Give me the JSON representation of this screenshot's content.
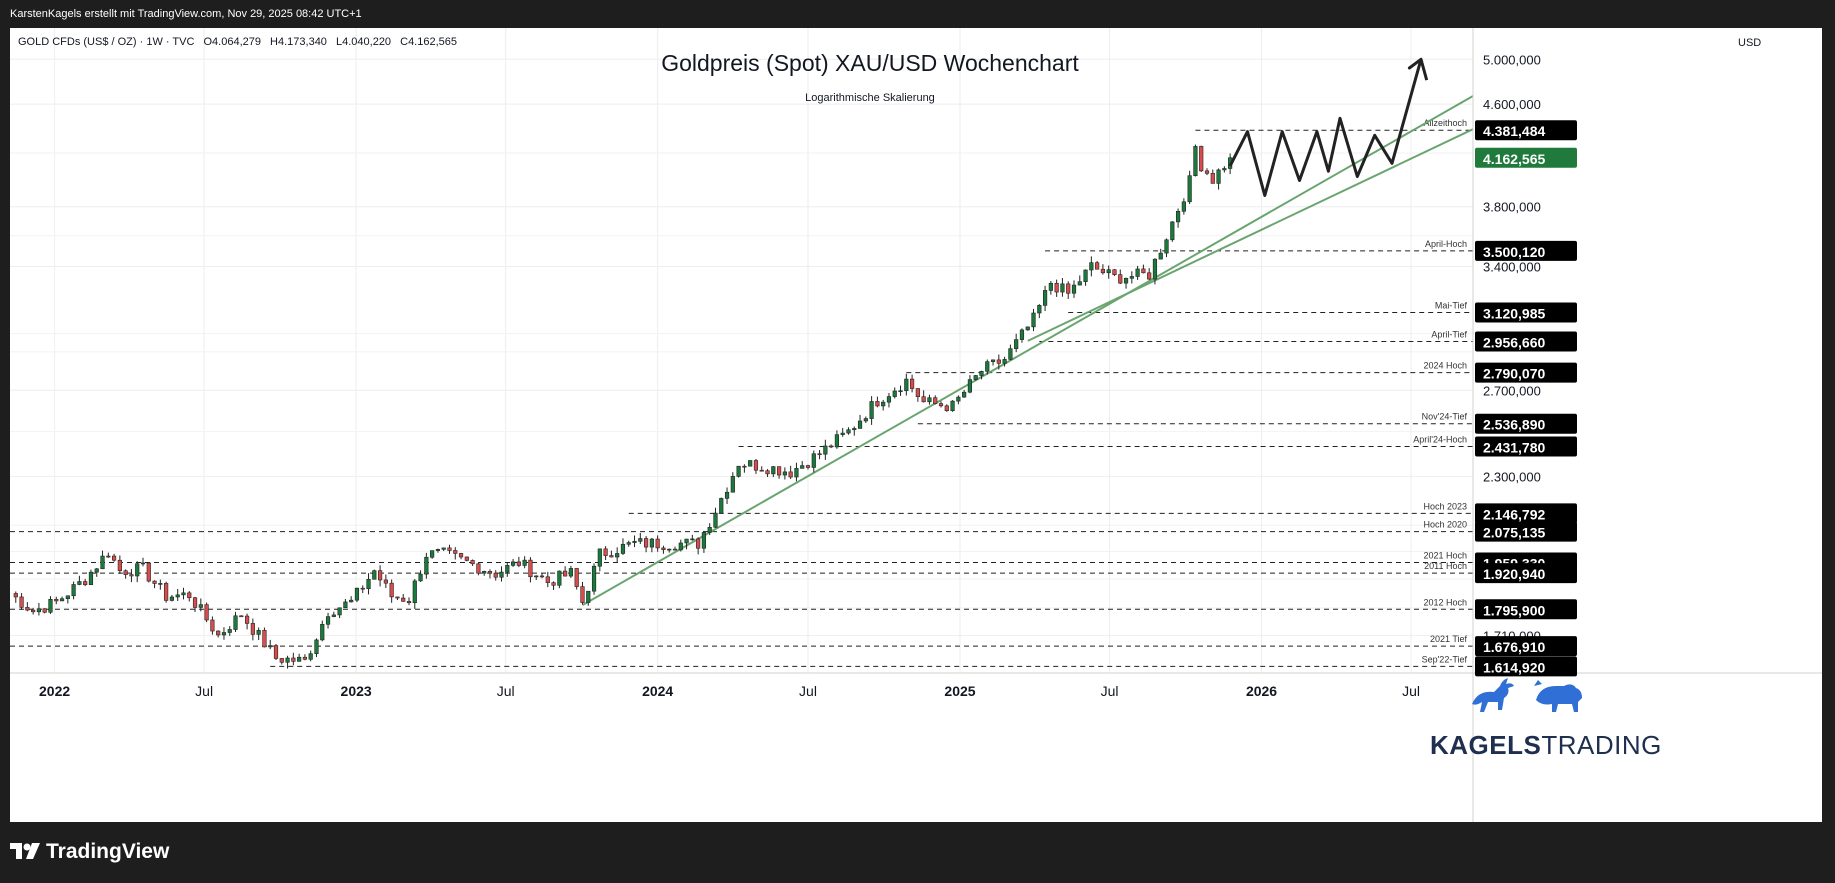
{
  "topbar": {
    "text": "KarstenKagels erstellt mit TradingView.com, Nov 29, 2025 08:42 UTC+1"
  },
  "legend": {
    "symbol": "GOLD CFDs (US$ / OZ) · 1W · TVC",
    "open": "O4.064,279",
    "high": "H4.173,340",
    "low": "L4.040,220",
    "close": "C4.162,565"
  },
  "title": "Goldpreis (Spot) XAU/USD Wochenchart",
  "subtitle": "Logarithmische Skalierung",
  "currency": "USD",
  "brand": {
    "bold": "KAGELS",
    "light": "TRADING"
  },
  "footer": {
    "logo_text": "TradingView"
  },
  "colors": {
    "up": "#1a7a3c",
    "down": "#d84c4c",
    "trendline": "#6aa56f",
    "price_tag": "#1f7a3c",
    "level_tag": "#000000"
  },
  "chart_data": {
    "type": "candlestick",
    "y_scale": "log",
    "ylim": [
      1595,
      5300
    ],
    "xlim": [
      "2021-11-08",
      "2026-09-14"
    ],
    "x_ticks": [
      {
        "date": "2022-01-01",
        "label": "2022",
        "bold": true
      },
      {
        "date": "2022-07-01",
        "label": "Jul",
        "bold": false
      },
      {
        "date": "2023-01-01",
        "label": "2023",
        "bold": true
      },
      {
        "date": "2023-07-01",
        "label": "Jul",
        "bold": false
      },
      {
        "date": "2024-01-01",
        "label": "2024",
        "bold": true
      },
      {
        "date": "2024-07-01",
        "label": "Jul",
        "bold": false
      },
      {
        "date": "2025-01-01",
        "label": "2025",
        "bold": true
      },
      {
        "date": "2025-07-01",
        "label": "Jul",
        "bold": false
      },
      {
        "date": "2026-01-01",
        "label": "2026",
        "bold": true
      },
      {
        "date": "2026-07-01",
        "label": "Jul",
        "bold": false
      }
    ],
    "y_ticks": [
      {
        "value": 5000,
        "label": "5.000,000"
      },
      {
        "value": 4600,
        "label": "4.600,000"
      },
      {
        "value": 3800,
        "label": "3.800,000"
      },
      {
        "value": 3400,
        "label": "3.400,000"
      },
      {
        "value": 2700,
        "label": "2.700,000"
      },
      {
        "value": 2300,
        "label": "2.300,000"
      },
      {
        "value": 1710,
        "label": "1.710,000"
      }
    ],
    "levels": [
      {
        "value": 4381.484,
        "label": "Allzeithoch",
        "tag": "4.381,484",
        "start": "2025-10-13"
      },
      {
        "value": 3500.12,
        "label": "April-Hoch",
        "tag": "3.500,120",
        "start": "2025-04-14"
      },
      {
        "value": 3120.985,
        "label": "Mai-Tief",
        "tag": "3.120,985",
        "start": "2025-05-12"
      },
      {
        "value": 2956.66,
        "label": "April-Tief",
        "tag": "2.956,660",
        "start": "2025-04-07"
      },
      {
        "value": 2790.07,
        "label": "2024 Hoch",
        "tag": "2.790,070",
        "start": "2024-10-28"
      },
      {
        "value": 2536.89,
        "label": "Nov'24-Tief",
        "tag": "2.536,890",
        "start": "2024-11-11"
      },
      {
        "value": 2431.78,
        "label": "April'24-Hoch",
        "tag": "2.431,780",
        "start": "2024-04-08"
      },
      {
        "value": 2146.792,
        "label": "Hoch 2023",
        "tag": "2.146,792",
        "start": "2023-11-27"
      },
      {
        "value": 2075.135,
        "label": "Hoch 2020",
        "tag": "2.075,135",
        "start": "2021-11-08"
      },
      {
        "value": 1959.33,
        "label": "2021 Hoch",
        "tag": "1.959,330",
        "start": "2021-11-08"
      },
      {
        "value": 1920.94,
        "label": "2011 Hoch",
        "tag": "1.920,940",
        "start": "2021-11-08"
      },
      {
        "value": 1795.9,
        "label": "2012 Hoch",
        "tag": "1.795,900",
        "start": "2021-11-08"
      },
      {
        "value": 1676.91,
        "label": "2021 Tief",
        "tag": "1.676,910",
        "start": "2021-11-08"
      },
      {
        "value": 1614.92,
        "label": "Sep'22-Tief",
        "tag": "1.614,920",
        "start": "2022-09-19"
      }
    ],
    "last_price": {
      "value": 4162.565,
      "tag": "4.162,565"
    },
    "trendlines": [
      {
        "from": {
          "date": "2023-10-02",
          "value": 1810
        },
        "to": {
          "date": "2026-09-14",
          "value": 4670
        }
      },
      {
        "from": {
          "date": "2025-03-24",
          "value": 2960
        },
        "to": {
          "date": "2026-09-14",
          "value": 4390
        }
      }
    ],
    "projection": [
      {
        "date": "2025-11-24",
        "value": 4100
      },
      {
        "date": "2025-12-15",
        "value": 4370
      },
      {
        "date": "2026-01-05",
        "value": 3880
      },
      {
        "date": "2026-01-26",
        "value": 4370
      },
      {
        "date": "2026-02-16",
        "value": 3990
      },
      {
        "date": "2026-03-09",
        "value": 4370
      },
      {
        "date": "2026-03-23",
        "value": 4060
      },
      {
        "date": "2026-04-06",
        "value": 4480
      },
      {
        "date": "2026-04-27",
        "value": 4020
      },
      {
        "date": "2026-05-18",
        "value": 4340
      },
      {
        "date": "2026-06-08",
        "value": 4120
      },
      {
        "date": "2026-07-13",
        "value": 5000
      },
      {
        "date": "2026-06-29",
        "value": 4920
      },
      {
        "date": "2026-07-13",
        "value": 5000
      },
      {
        "date": "2026-07-20",
        "value": 4810
      }
    ],
    "candle_anchors": [
      [
        "2021-11-08",
        1850
      ],
      [
        "2021-12-06",
        1790
      ],
      [
        "2022-01-03",
        1820
      ],
      [
        "2022-02-07",
        1900
      ],
      [
        "2022-03-07",
        2000
      ],
      [
        "2022-03-21",
        1930
      ],
      [
        "2022-04-18",
        1935
      ],
      [
        "2022-05-16",
        1840
      ],
      [
        "2022-06-13",
        1845
      ],
      [
        "2022-07-18",
        1710
      ],
      [
        "2022-08-15",
        1780
      ],
      [
        "2022-09-26",
        1640
      ],
      [
        "2022-10-31",
        1630
      ],
      [
        "2022-11-28",
        1790
      ],
      [
        "2022-12-26",
        1820
      ],
      [
        "2023-01-23",
        1930
      ],
      [
        "2023-02-13",
        1840
      ],
      [
        "2023-03-06",
        1830
      ],
      [
        "2023-03-27",
        1990
      ],
      [
        "2023-04-17",
        1990
      ],
      [
        "2023-05-15",
        1960
      ],
      [
        "2023-06-19",
        1920
      ],
      [
        "2023-07-17",
        1960
      ],
      [
        "2023-08-21",
        1890
      ],
      [
        "2023-09-18",
        1920
      ],
      [
        "2023-10-02",
        1820
      ],
      [
        "2023-10-23",
        1990
      ],
      [
        "2023-12-04",
        2030
      ],
      [
        "2024-01-29",
        2030
      ],
      [
        "2024-02-19",
        2030
      ],
      [
        "2024-03-11",
        2160
      ],
      [
        "2024-04-08",
        2360
      ],
      [
        "2024-05-13",
        2340
      ],
      [
        "2024-06-10",
        2320
      ],
      [
        "2024-07-15",
        2400
      ],
      [
        "2024-08-19",
        2500
      ],
      [
        "2024-09-23",
        2650
      ],
      [
        "2024-10-28",
        2750
      ],
      [
        "2024-11-18",
        2640
      ],
      [
        "2024-12-23",
        2620
      ],
      [
        "2025-01-27",
        2800
      ],
      [
        "2025-02-24",
        2860
      ],
      [
        "2025-03-31",
        3080
      ],
      [
        "2025-04-21",
        3300
      ],
      [
        "2025-05-12",
        3230
      ],
      [
        "2025-06-09",
        3400
      ],
      [
        "2025-07-07",
        3330
      ],
      [
        "2025-08-18",
        3350
      ],
      [
        "2025-09-08",
        3600
      ],
      [
        "2025-10-06",
        3980
      ],
      [
        "2025-10-13",
        4250
      ],
      [
        "2025-10-20",
        4110
      ],
      [
        "2025-11-03",
        4000
      ],
      [
        "2025-11-24",
        4162.565
      ]
    ]
  }
}
